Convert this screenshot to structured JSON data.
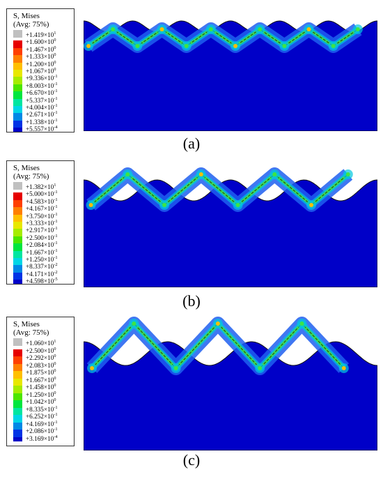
{
  "panels": [
    {
      "id": "a",
      "legend": {
        "title_line1": "S, Mises",
        "title_line2": "(Avg: 75%)",
        "entries": [
          {
            "label": "+1.419×10",
            "exp": "1",
            "color": "#c0c0c0"
          },
          {
            "label": "+1.600×10",
            "exp": "0",
            "color": "#e60000"
          },
          {
            "label": "+1.467×10",
            "exp": "0",
            "color": "#ff3f00"
          },
          {
            "label": "+1.333×10",
            "exp": "0",
            "color": "#ff7f00"
          },
          {
            "label": "+1.200×10",
            "exp": "0",
            "color": "#ffbf00"
          },
          {
            "label": "+1.067×10",
            "exp": "0",
            "color": "#e8e800"
          },
          {
            "label": "+9.336×10",
            "exp": "-1",
            "color": "#a6ec00"
          },
          {
            "label": "+8.003×10",
            "exp": "-1",
            "color": "#4ce600"
          },
          {
            "label": "+6.670×10",
            "exp": "-1",
            "color": "#00e63f"
          },
          {
            "label": "+5.337×10",
            "exp": "-1",
            "color": "#00e6a0"
          },
          {
            "label": "+4.004×10",
            "exp": "-1",
            "color": "#00d6e6"
          },
          {
            "label": "+2.671×10",
            "exp": "-1",
            "color": "#0088e6"
          },
          {
            "label": "+1.338×10",
            "exp": "-1",
            "color": "#0033e6"
          },
          {
            "label": "+5.557×10",
            "exp": "-4",
            "color": "#0000c8"
          }
        ]
      },
      "caption": "(a)"
    },
    {
      "id": "b",
      "legend": {
        "title_line1": "S, Mises",
        "title_line2": "(Avg: 75%)",
        "entries": [
          {
            "label": "+1.382×10",
            "exp": "1",
            "color": "#c0c0c0"
          },
          {
            "label": "+5.000×10",
            "exp": "-1",
            "color": "#e60000"
          },
          {
            "label": "+4.583×10",
            "exp": "-1",
            "color": "#ff3f00"
          },
          {
            "label": "+4.167×10",
            "exp": "-1",
            "color": "#ff7f00"
          },
          {
            "label": "+3.750×10",
            "exp": "-1",
            "color": "#ffbf00"
          },
          {
            "label": "+3.333×10",
            "exp": "-1",
            "color": "#e8e800"
          },
          {
            "label": "+2.917×10",
            "exp": "-1",
            "color": "#a6ec00"
          },
          {
            "label": "+2.500×10",
            "exp": "-1",
            "color": "#4ce600"
          },
          {
            "label": "+2.084×10",
            "exp": "-1",
            "color": "#00e63f"
          },
          {
            "label": "+1.667×10",
            "exp": "-1",
            "color": "#00e6a0"
          },
          {
            "label": "+1.250×10",
            "exp": "-1",
            "color": "#00d6e6"
          },
          {
            "label": "+8.337×10",
            "exp": "-2",
            "color": "#0088e6"
          },
          {
            "label": "+4.171×10",
            "exp": "-2",
            "color": "#0033e6"
          },
          {
            "label": "+4.598×10",
            "exp": "-5",
            "color": "#0000c8"
          }
        ]
      },
      "caption": "(b)"
    },
    {
      "id": "c",
      "legend": {
        "title_line1": "S, Mises",
        "title_line2": "(Avg: 75%)",
        "entries": [
          {
            "label": "+1.060×10",
            "exp": "1",
            "color": "#c0c0c0"
          },
          {
            "label": "+2.500×10",
            "exp": "0",
            "color": "#e60000"
          },
          {
            "label": "+2.292×10",
            "exp": "0",
            "color": "#ff3f00"
          },
          {
            "label": "+2.083×10",
            "exp": "0",
            "color": "#ff7f00"
          },
          {
            "label": "+1.875×10",
            "exp": "0",
            "color": "#ffbf00"
          },
          {
            "label": "+1.667×10",
            "exp": "0",
            "color": "#e8e800"
          },
          {
            "label": "+1.458×10",
            "exp": "0",
            "color": "#a6ec00"
          },
          {
            "label": "+1.250×10",
            "exp": "0",
            "color": "#4ce600"
          },
          {
            "label": "+1.042×10",
            "exp": "0",
            "color": "#00e63f"
          },
          {
            "label": "+8.335×10",
            "exp": "-1",
            "color": "#00e6a0"
          },
          {
            "label": "+6.252×10",
            "exp": "-1",
            "color": "#00d6e6"
          },
          {
            "label": "+4.169×10",
            "exp": "-1",
            "color": "#0088e6"
          },
          {
            "label": "+2.086×10",
            "exp": "-1",
            "color": "#0033e6"
          },
          {
            "label": "+3.169×10",
            "exp": "-4",
            "color": "#0000c8"
          }
        ]
      },
      "caption": "(c)"
    }
  ],
  "colors": {
    "field": "#0000c8",
    "low_halo": "#1f5ff0",
    "mid_halo": "#00c8e0",
    "high": "#3fe63f",
    "hot": "#ffbf00",
    "peak": "#e60000",
    "seam": "#222222"
  }
}
